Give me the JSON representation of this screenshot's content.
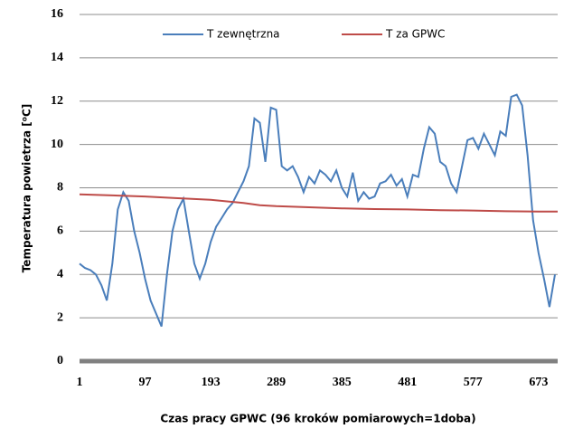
{
  "chart_data": {
    "type": "line",
    "x_label": "Czas pracy GPWC (96 kroków pomiarowych=1doba)",
    "y_label": "Temperatura powietrza [⁰C]",
    "xlim": [
      1,
      701
    ],
    "xticks": [
      1,
      97,
      193,
      289,
      385,
      481,
      577,
      673
    ],
    "ylim": [
      0,
      16
    ],
    "yticks": [
      0,
      2,
      4,
      6,
      8,
      10,
      12,
      14,
      16
    ],
    "grid": true,
    "legend": "top",
    "series": [
      {
        "name": "T zewnętrzna",
        "color": "#4a7ebb",
        "x": [
          1,
          9,
          17,
          25,
          33,
          41,
          49,
          57,
          65,
          73,
          81,
          89,
          97,
          105,
          113,
          121,
          129,
          137,
          145,
          153,
          161,
          169,
          177,
          185,
          193,
          201,
          209,
          217,
          225,
          233,
          241,
          249,
          257,
          265,
          273,
          281,
          289,
          297,
          305,
          313,
          321,
          329,
          337,
          345,
          353,
          361,
          369,
          377,
          385,
          393,
          401,
          409,
          417,
          425,
          433,
          441,
          449,
          457,
          465,
          473,
          481,
          489,
          497,
          505,
          513,
          521,
          529,
          537,
          545,
          553,
          561,
          569,
          577,
          585,
          593,
          601,
          609,
          617,
          625,
          633,
          641,
          649,
          657,
          665,
          673,
          681,
          689,
          697
        ],
        "values": [
          4.5,
          4.3,
          4.2,
          4.0,
          3.5,
          2.8,
          4.5,
          7.0,
          7.8,
          7.4,
          6.0,
          5.0,
          3.8,
          2.8,
          2.2,
          1.6,
          4.0,
          6.0,
          7.0,
          7.5,
          6.0,
          4.5,
          3.8,
          4.5,
          5.5,
          6.2,
          6.6,
          7.0,
          7.3,
          7.8,
          8.3,
          9.0,
          11.2,
          11.0,
          9.2,
          11.7,
          11.6,
          9.0,
          8.8,
          9.0,
          8.5,
          7.8,
          8.5,
          8.2,
          8.8,
          8.6,
          8.3,
          8.8,
          8.0,
          7.6,
          8.7,
          7.4,
          7.8,
          7.5,
          7.6,
          8.2,
          8.3,
          8.6,
          8.1,
          8.4,
          7.6,
          8.6,
          8.5,
          9.8,
          10.8,
          10.5,
          9.2,
          9.0,
          8.2,
          7.8,
          9.0,
          10.2,
          10.3,
          9.8,
          10.5,
          10.0,
          9.5,
          10.6,
          10.4,
          12.2,
          12.3,
          11.8,
          9.5,
          6.5,
          5.0,
          3.8,
          2.5,
          4.0
        ]
      },
      {
        "name": "T za GPWC",
        "color": "#be4b48",
        "x": [
          1,
          49,
          97,
          145,
          193,
          241,
          265,
          289,
          337,
          385,
          433,
          481,
          529,
          577,
          625,
          673,
          701
        ],
        "values": [
          7.7,
          7.65,
          7.6,
          7.52,
          7.45,
          7.3,
          7.2,
          7.15,
          7.1,
          7.05,
          7.02,
          7.0,
          6.97,
          6.95,
          6.92,
          6.9,
          6.9
        ]
      }
    ]
  }
}
